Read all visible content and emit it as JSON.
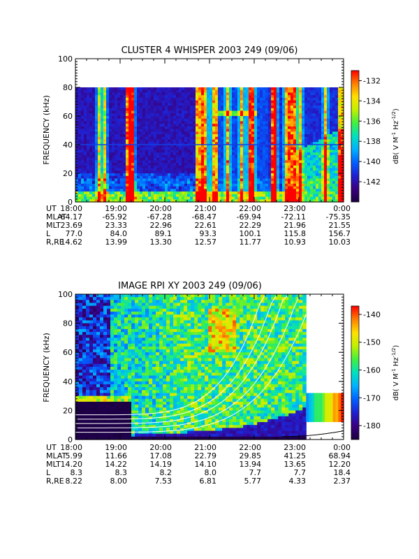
{
  "chart_data": [
    {
      "type": "heatmap",
      "title": "CLUSTER 4 WHISPER 2003 249 (09/06)",
      "ylabel": "FREQUENCY (kHz)",
      "ylim": [
        0,
        100
      ],
      "yticks": [
        "0",
        "20",
        "40",
        "60",
        "80",
        "100"
      ],
      "xticks": [
        "18:00",
        "19:00",
        "20:00",
        "21:00",
        "22:00",
        "23:00",
        "0:00"
      ],
      "data_extent_khz": 80,
      "colorbar": {
        "label": "dB( V M⁻¹ Hz⁻¹ᐟ²)",
        "label_parts": [
          "dB( V M",
          "-1",
          " Hz",
          "-1/2",
          ")"
        ],
        "ticks": [
          "-132",
          "-134",
          "-136",
          "-138",
          "-140",
          "-142"
        ],
        "range": [
          -144,
          -131
        ]
      },
      "ephemeris": {
        "labels": [
          "UT",
          "MLAT",
          "MLT",
          "L",
          "R,RE"
        ],
        "rows": [
          [
            "18:00",
            "19:00",
            "20:00",
            "21:00",
            "22:00",
            "23:00",
            "0:00"
          ],
          [
            "-64.17",
            "-65.92",
            "-67.28",
            "-68.47",
            "-69.94",
            "-72.11",
            "-75.35"
          ],
          [
            "23.69",
            "23.33",
            "22.96",
            "22.61",
            "22.29",
            "21.96",
            "21.55"
          ],
          [
            "77.0",
            "84.0",
            "89.1",
            "93.3",
            "100.1",
            "115.8",
            "156.7"
          ],
          [
            "14.62",
            "13.99",
            "13.30",
            "12.57",
            "11.77",
            "10.93",
            "10.03"
          ]
        ]
      }
    },
    {
      "type": "heatmap",
      "title": "IMAGE RPI XY 2003 249 (09/06)",
      "ylabel": "FREQUENCY (kHz)",
      "ylim": [
        0,
        100
      ],
      "yticks": [
        "0",
        "20",
        "40",
        "60",
        "80",
        "100"
      ],
      "xticks": [
        "18:00",
        "19:00",
        "20:00",
        "21:00",
        "22:00",
        "23:00",
        "0:00"
      ],
      "colorbar": {
        "label_parts": [
          "dB( V M",
          "-1",
          " Hz",
          "-1/2",
          ")"
        ],
        "ticks": [
          "-140",
          "-150",
          "-160",
          "-170",
          "-180"
        ],
        "range": [
          -185,
          -137
        ]
      },
      "ephemeris": {
        "labels": [
          "UT",
          "MLAT",
          "MLT",
          "L",
          "R,RE"
        ],
        "rows": [
          [
            "18:00",
            "19:00",
            "20:00",
            "21:00",
            "22:00",
            "23:00",
            "0:00"
          ],
          [
            "5.99",
            "11.66",
            "17.08",
            "22.79",
            "29.85",
            "41.25",
            "68.94"
          ],
          [
            "14.20",
            "14.22",
            "14.19",
            "14.10",
            "13.94",
            "13.65",
            "12.20"
          ],
          [
            "8.3",
            "8.3",
            "8.2",
            "8.0",
            "7.7",
            "7.7",
            "18.4"
          ],
          [
            "8.22",
            "8.00",
            "7.53",
            "6.81",
            "5.77",
            "4.33",
            "2.37"
          ]
        ]
      }
    }
  ],
  "colors": {
    "scale": [
      "#1a0040",
      "#3a0080",
      "#2020d0",
      "#0060ff",
      "#00b0ff",
      "#00e0c0",
      "#40f040",
      "#c0f000",
      "#ffe000",
      "#ff8000",
      "#ff0000"
    ]
  }
}
